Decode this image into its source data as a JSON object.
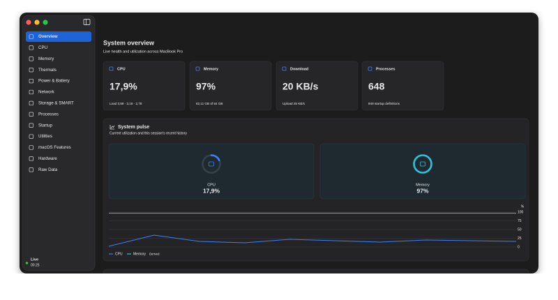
{
  "sidebar": {
    "items": [
      "Overview",
      "CPU",
      "Memory",
      "Thermals",
      "Power & Battery",
      "Network",
      "Storage & SMART",
      "Processes",
      "Startup",
      "Utilities",
      "macOS Features",
      "Hardware",
      "Raw Data"
    ],
    "selected": 0,
    "status": "Live",
    "elapsed": "00:25"
  },
  "header": {
    "title": "System overview",
    "subtitle": "Live health and utilization across MacBook Pro"
  },
  "cards": [
    {
      "label": "CPU",
      "value": "17,9%",
      "detail": "Load 3,59 · 3,18 · 2,78"
    },
    {
      "label": "Memory",
      "value": "97%",
      "detail": "62,11 GB of 64 GB"
    },
    {
      "label": "Download",
      "value": "20 KB/s",
      "detail": "Upload 25 KB/s"
    },
    {
      "label": "Processes",
      "value": "648",
      "detail": "849 startup definitions"
    }
  ],
  "pulse": {
    "title": "System pulse",
    "subtitle": "Current utilization and this session's recent history",
    "gauges": [
      {
        "label": "CPU",
        "value": 17.9,
        "value_label": "17,9%",
        "color": "#3b82f6"
      },
      {
        "label": "Memory",
        "value": 97,
        "value_label": "97%",
        "color": "#2cc3d8"
      }
    ],
    "chart_data": {
      "type": "line",
      "y_unit": "%",
      "ylim": [
        0,
        100
      ],
      "yticks": [
        0,
        25,
        50,
        75,
        100
      ],
      "grid": true,
      "legend_note": "Derived",
      "series": [
        {
          "name": "CPU",
          "color": "#3b82f6",
          "values": [
            2,
            34,
            16,
            12,
            22,
            18,
            14,
            20,
            18,
            16
          ]
        },
        {
          "name": "Memory",
          "color": "#2cc3d8",
          "values": [
            97,
            97,
            97,
            97,
            97,
            97,
            97,
            97,
            97,
            97
          ]
        }
      ]
    }
  }
}
